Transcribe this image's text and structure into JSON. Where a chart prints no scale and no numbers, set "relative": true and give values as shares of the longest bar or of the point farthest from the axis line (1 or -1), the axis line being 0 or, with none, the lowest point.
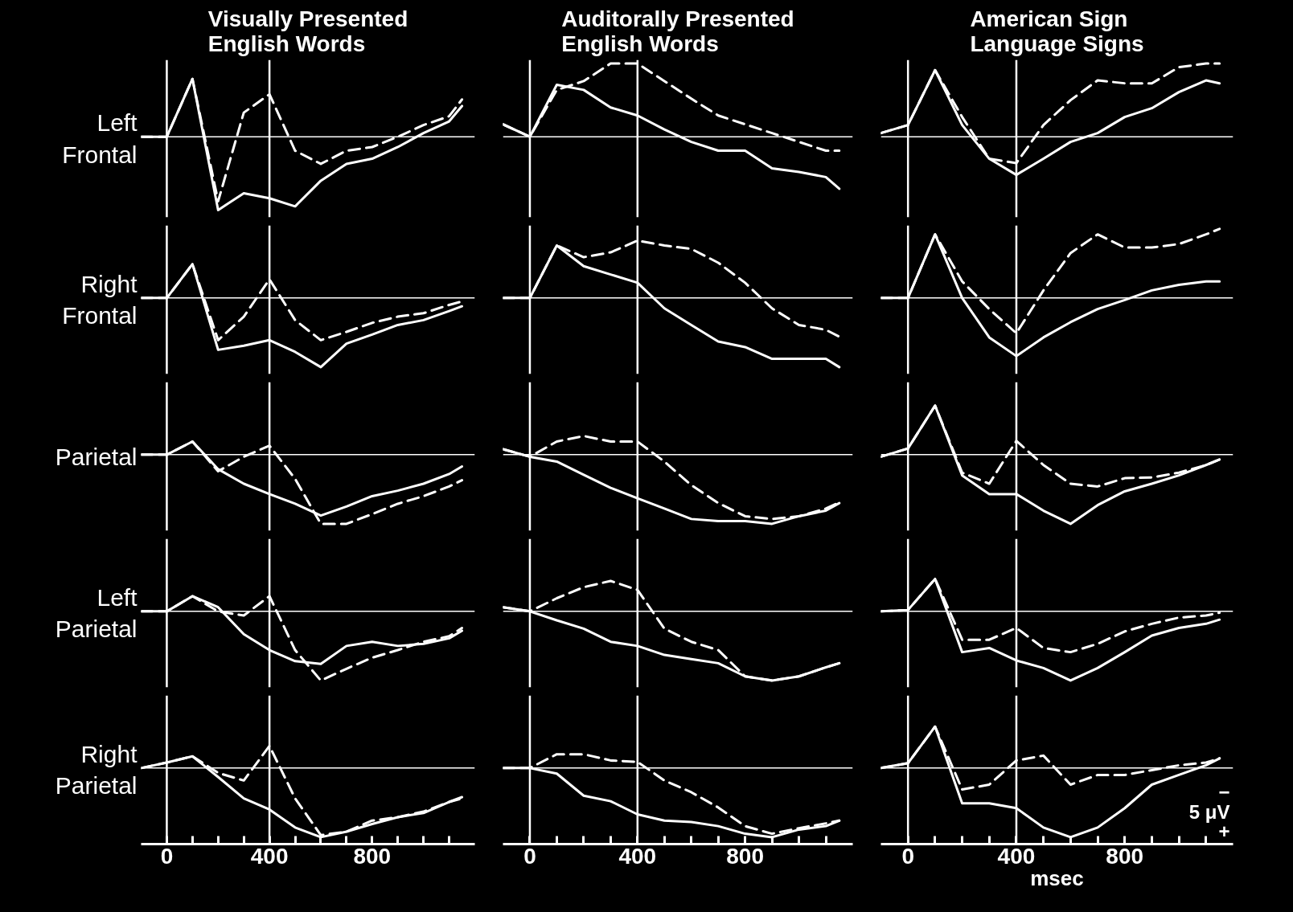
{
  "chart_data": [
    {
      "type": "line",
      "title": "Visually Presented English Words",
      "ylabel": "Left Frontal",
      "relative": true,
      "xlim": [
        -100,
        1200
      ],
      "tick_labels": false,
      "x": [
        -100,
        0,
        100,
        200,
        300,
        400,
        500,
        600,
        700,
        800,
        900,
        1000,
        1100,
        1150
      ],
      "ref_lines": [
        {
          "axis": "x",
          "value": 0,
          "color": "#ffffff"
        },
        {
          "axis": "x",
          "value": 400,
          "color": "#ffffff"
        }
      ],
      "series": [
        {
          "color": "#ffffff",
          "line_style": "solid",
          "values": [
            0,
            0,
            0.79,
            -1,
            -0.77,
            -0.84,
            -0.95,
            -0.6,
            -0.37,
            -0.3,
            -0.14,
            0.05,
            0.21,
            0.42
          ]
        },
        {
          "color": "#ffffff",
          "line_style": "dashed",
          "values": [
            0,
            0,
            0.79,
            -0.88,
            0.33,
            0.58,
            -0.19,
            -0.37,
            -0.19,
            -0.14,
            0,
            0.16,
            0.28,
            0.51
          ]
        }
      ]
    },
    {
      "type": "line",
      "title": "Auditorally Presented English Words",
      "relative": true,
      "xlim": [
        -100,
        1200
      ],
      "tick_labels": false,
      "x": [
        -100,
        0,
        100,
        200,
        300,
        400,
        500,
        600,
        700,
        800,
        900,
        1000,
        1100,
        1150
      ],
      "ref_lines": [
        {
          "axis": "x",
          "value": 0,
          "color": "#ffffff"
        },
        {
          "axis": "x",
          "value": 400,
          "color": "#ffffff"
        }
      ],
      "series": [
        {
          "color": "#ffffff",
          "line_style": "solid",
          "values": [
            0.17,
            0,
            0.71,
            0.64,
            0.4,
            0.29,
            0.1,
            -0.07,
            -0.19,
            -0.19,
            -0.43,
            -0.48,
            -0.55,
            -0.71
          ]
        },
        {
          "color": "#ffffff",
          "line_style": "dashed",
          "values": [
            0.17,
            0,
            0.64,
            0.76,
            1,
            1,
            0.76,
            0.52,
            0.29,
            0.17,
            0.05,
            -0.07,
            -0.19,
            -0.19
          ]
        }
      ]
    },
    {
      "type": "line",
      "title": "American Sign Language Signs",
      "relative": true,
      "xlim": [
        -100,
        1200
      ],
      "tick_labels": false,
      "x": [
        -100,
        0,
        100,
        200,
        300,
        400,
        500,
        600,
        700,
        800,
        900,
        1000,
        1100,
        1150
      ],
      "ref_lines": [
        {
          "axis": "x",
          "value": 0,
          "color": "#ffffff"
        },
        {
          "axis": "x",
          "value": 400,
          "color": "#ffffff"
        }
      ],
      "series": [
        {
          "color": "#ffffff",
          "line_style": "solid",
          "values": [
            0.05,
            0.16,
            0.91,
            0.16,
            -0.3,
            -0.52,
            -0.3,
            -0.07,
            0.05,
            0.27,
            0.39,
            0.61,
            0.77,
            0.73
          ]
        },
        {
          "color": "#ffffff",
          "line_style": "dashed",
          "values": [
            0.05,
            0.16,
            0.91,
            0.27,
            -0.3,
            -0.36,
            0.16,
            0.5,
            0.77,
            0.73,
            0.73,
            0.95,
            1,
            1
          ]
        }
      ]
    },
    {
      "type": "line",
      "ylabel": "Right Frontal",
      "relative": true,
      "xlim": [
        -100,
        1200
      ],
      "tick_labels": false,
      "x": [
        -100,
        0,
        100,
        200,
        300,
        400,
        500,
        600,
        700,
        800,
        900,
        1000,
        1100,
        1150
      ],
      "ref_lines": [
        {
          "axis": "x",
          "value": 0,
          "color": "#ffffff"
        },
        {
          "axis": "x",
          "value": 400,
          "color": "#ffffff"
        }
      ],
      "series": [
        {
          "color": "#ffffff",
          "line_style": "solid",
          "values": [
            0,
            0,
            0.49,
            -0.75,
            -0.69,
            -0.61,
            -0.78,
            -1,
            -0.66,
            -0.53,
            -0.39,
            -0.32,
            -0.19,
            -0.12
          ]
        },
        {
          "color": "#ffffff",
          "line_style": "dashed",
          "values": [
            0,
            0,
            0.49,
            -0.61,
            -0.27,
            0.27,
            -0.32,
            -0.61,
            -0.49,
            -0.36,
            -0.27,
            -0.22,
            -0.1,
            -0.05
          ]
        }
      ]
    },
    {
      "type": "line",
      "relative": true,
      "xlim": [
        -100,
        1200
      ],
      "tick_labels": false,
      "x": [
        -100,
        0,
        100,
        200,
        300,
        400,
        500,
        600,
        700,
        800,
        900,
        1000,
        1100,
        1150
      ],
      "ref_lines": [
        {
          "axis": "x",
          "value": 0,
          "color": "#ffffff"
        },
        {
          "axis": "x",
          "value": 400,
          "color": "#ffffff"
        }
      ],
      "series": [
        {
          "color": "#ffffff",
          "line_style": "solid",
          "values": [
            0,
            0,
            0.76,
            0.46,
            0.34,
            0.22,
            -0.15,
            -0.39,
            -0.63,
            -0.71,
            -0.88,
            -0.88,
            -0.88,
            -1
          ]
        },
        {
          "color": "#ffffff",
          "line_style": "dashed",
          "values": [
            0,
            0,
            0.76,
            0.59,
            0.66,
            0.83,
            0.76,
            0.71,
            0.51,
            0.22,
            -0.15,
            -0.39,
            -0.46,
            -0.56
          ]
        }
      ]
    },
    {
      "type": "line",
      "relative": true,
      "xlim": [
        -100,
        1200
      ],
      "tick_labels": false,
      "x": [
        -100,
        0,
        100,
        200,
        300,
        400,
        500,
        600,
        700,
        800,
        900,
        1000,
        1100,
        1150
      ],
      "ref_lines": [
        {
          "axis": "x",
          "value": 0,
          "color": "#ffffff"
        },
        {
          "axis": "x",
          "value": 400,
          "color": "#ffffff"
        }
      ],
      "series": [
        {
          "color": "#ffffff",
          "line_style": "solid",
          "values": [
            0,
            0,
            0.92,
            0,
            -0.57,
            -0.84,
            -0.57,
            -0.35,
            -0.16,
            -0.03,
            0.11,
            0.19,
            0.24,
            0.24
          ]
        },
        {
          "color": "#ffffff",
          "line_style": "dashed",
          "values": [
            0,
            0,
            0.92,
            0.24,
            -0.16,
            -0.51,
            0.11,
            0.65,
            0.92,
            0.73,
            0.73,
            0.78,
            0.92,
            1
          ]
        }
      ]
    },
    {
      "type": "line",
      "ylabel": "Parietal",
      "relative": true,
      "xlim": [
        -100,
        1200
      ],
      "tick_labels": false,
      "x": [
        -100,
        0,
        100,
        200,
        300,
        400,
        500,
        600,
        700,
        800,
        900,
        1000,
        1100,
        1150
      ],
      "ref_lines": [
        {
          "axis": "x",
          "value": 0,
          "color": "#ffffff"
        },
        {
          "axis": "x",
          "value": 400,
          "color": "#ffffff"
        }
      ],
      "series": [
        {
          "color": "#ffffff",
          "line_style": "solid",
          "values": [
            0,
            0,
            0.19,
            -0.21,
            -0.42,
            -0.57,
            -0.71,
            -0.88,
            -0.75,
            -0.6,
            -0.52,
            -0.42,
            -0.28,
            -0.17
          ]
        },
        {
          "color": "#ffffff",
          "line_style": "dashed",
          "values": [
            0,
            0,
            0.19,
            -0.24,
            -0.03,
            0.13,
            -0.35,
            -1,
            -1,
            -0.86,
            -0.71,
            -0.6,
            -0.46,
            -0.37
          ]
        }
      ]
    },
    {
      "type": "line",
      "relative": true,
      "xlim": [
        -100,
        1200
      ],
      "tick_labels": false,
      "x": [
        -100,
        0,
        100,
        200,
        300,
        400,
        500,
        600,
        700,
        800,
        900,
        1000,
        1100,
        1150
      ],
      "ref_lines": [
        {
          "axis": "x",
          "value": 0,
          "color": "#ffffff"
        },
        {
          "axis": "x",
          "value": 400,
          "color": "#ffffff"
        }
      ],
      "series": [
        {
          "color": "#ffffff",
          "line_style": "solid",
          "values": [
            0.08,
            -0.03,
            -0.1,
            -0.29,
            -0.48,
            -0.63,
            -0.78,
            -0.93,
            -0.96,
            -0.96,
            -1,
            -0.89,
            -0.81,
            -0.7
          ]
        },
        {
          "color": "#ffffff",
          "line_style": "dashed",
          "values": [
            0.08,
            -0.03,
            0.19,
            0.27,
            0.19,
            0.19,
            -0.1,
            -0.44,
            -0.7,
            -0.89,
            -0.93,
            -0.89,
            -0.78,
            -0.69
          ]
        }
      ]
    },
    {
      "type": "line",
      "relative": true,
      "xlim": [
        -100,
        1200
      ],
      "tick_labels": false,
      "x": [
        -100,
        0,
        100,
        200,
        300,
        400,
        500,
        600,
        700,
        800,
        900,
        1000,
        1100,
        1150
      ],
      "ref_lines": [
        {
          "axis": "x",
          "value": 0,
          "color": "#ffffff"
        },
        {
          "axis": "x",
          "value": 400,
          "color": "#ffffff"
        }
      ],
      "series": [
        {
          "color": "#ffffff",
          "line_style": "solid",
          "values": [
            -0.03,
            0.09,
            0.71,
            -0.3,
            -0.57,
            -0.57,
            -0.81,
            -1,
            -0.73,
            -0.53,
            -0.42,
            -0.3,
            -0.15,
            -0.07
          ]
        },
        {
          "color": "#ffffff",
          "line_style": "dashed",
          "values": [
            -0.03,
            0.09,
            0.71,
            -0.26,
            -0.42,
            0.2,
            -0.15,
            -0.42,
            -0.46,
            -0.34,
            -0.33,
            -0.26,
            -0.15,
            -0.07
          ]
        }
      ]
    },
    {
      "type": "line",
      "ylabel": "Left Parietal",
      "relative": true,
      "xlim": [
        -100,
        1200
      ],
      "tick_labels": false,
      "x": [
        -100,
        0,
        100,
        200,
        300,
        400,
        500,
        600,
        700,
        800,
        900,
        1000,
        1100,
        1150
      ],
      "ref_lines": [
        {
          "axis": "x",
          "value": 0,
          "color": "#ffffff"
        },
        {
          "axis": "x",
          "value": 400,
          "color": "#ffffff"
        }
      ],
      "series": [
        {
          "color": "#ffffff",
          "line_style": "solid",
          "values": [
            0,
            0,
            0.22,
            0.06,
            -0.33,
            -0.56,
            -0.72,
            -0.76,
            -0.5,
            -0.44,
            -0.5,
            -0.47,
            -0.39,
            -0.28
          ]
        },
        {
          "color": "#ffffff",
          "line_style": "dashed",
          "values": [
            0,
            0,
            0.22,
            0,
            -0.06,
            0.22,
            -0.56,
            -1,
            -0.83,
            -0.67,
            -0.56,
            -0.44,
            -0.36,
            -0.24
          ]
        }
      ]
    },
    {
      "type": "line",
      "relative": true,
      "xlim": [
        -100,
        1200
      ],
      "tick_labels": false,
      "x": [
        -100,
        0,
        100,
        200,
        300,
        400,
        500,
        600,
        700,
        800,
        900,
        1000,
        1100,
        1150
      ],
      "ref_lines": [
        {
          "axis": "x",
          "value": 0,
          "color": "#ffffff"
        },
        {
          "axis": "x",
          "value": 400,
          "color": "#ffffff"
        }
      ],
      "series": [
        {
          "color": "#ffffff",
          "line_style": "solid",
          "values": [
            0.06,
            0,
            -0.13,
            -0.25,
            -0.44,
            -0.5,
            -0.63,
            -0.69,
            -0.75,
            -0.94,
            -1,
            -0.94,
            -0.81,
            -0.75
          ]
        },
        {
          "color": "#ffffff",
          "line_style": "dashed",
          "values": [
            0.06,
            0,
            0.19,
            0.35,
            0.44,
            0.31,
            -0.25,
            -0.44,
            -0.56,
            -0.94,
            -1,
            -0.94,
            -0.81,
            -0.75
          ]
        }
      ]
    },
    {
      "type": "line",
      "relative": true,
      "xlim": [
        -100,
        1200
      ],
      "tick_labels": false,
      "x": [
        -100,
        0,
        100,
        200,
        300,
        400,
        500,
        600,
        700,
        800,
        900,
        1000,
        1100,
        1150
      ],
      "ref_lines": [
        {
          "axis": "x",
          "value": 0,
          "color": "#ffffff"
        },
        {
          "axis": "x",
          "value": 400,
          "color": "#ffffff"
        }
      ],
      "series": [
        {
          "color": "#ffffff",
          "line_style": "solid",
          "values": [
            0,
            0.02,
            0.47,
            -0.59,
            -0.53,
            -0.71,
            -0.82,
            -1,
            -0.82,
            -0.59,
            -0.35,
            -0.24,
            -0.18,
            -0.12
          ]
        },
        {
          "color": "#ffffff",
          "line_style": "dashed",
          "values": [
            0,
            0.02,
            0.47,
            -0.41,
            -0.41,
            -0.24,
            -0.53,
            -0.59,
            -0.47,
            -0.29,
            -0.18,
            -0.09,
            -0.06,
            -0.02
          ]
        }
      ]
    },
    {
      "type": "line",
      "ylabel": "Right Parietal",
      "relative": true,
      "xlim": [
        -100,
        1200
      ],
      "tick_labels": "x",
      "xticks": [
        0,
        {
          "value": 100,
          "label": null
        },
        {
          "value": 200,
          "label": null
        },
        {
          "value": 300,
          "label": null
        },
        400,
        {
          "value": 500,
          "label": null
        },
        {
          "value": 600,
          "label": null
        },
        {
          "value": 700,
          "label": null
        },
        800,
        {
          "value": 900,
          "label": null
        },
        {
          "value": 1000,
          "label": null
        },
        {
          "value": 1100,
          "label": null
        }
      ],
      "x": [
        -100,
        0,
        100,
        200,
        300,
        400,
        500,
        600,
        700,
        800,
        900,
        1000,
        1100,
        1150
      ],
      "ref_lines": [
        {
          "axis": "x",
          "value": 0,
          "color": "#ffffff"
        },
        {
          "axis": "x",
          "value": 400,
          "color": "#ffffff"
        }
      ],
      "series": [
        {
          "color": "#ffffff",
          "line_style": "solid",
          "values": [
            0,
            0.08,
            0.17,
            -0.13,
            -0.44,
            -0.6,
            -0.86,
            -1,
            -0.92,
            -0.81,
            -0.71,
            -0.65,
            -0.49,
            -0.42
          ]
        },
        {
          "color": "#ffffff",
          "line_style": "dashed",
          "values": [
            0,
            0.08,
            0.17,
            -0.07,
            -0.18,
            0.32,
            -0.44,
            -0.97,
            -0.92,
            -0.76,
            -0.71,
            -0.63,
            -0.49,
            -0.44
          ]
        }
      ]
    },
    {
      "type": "line",
      "relative": true,
      "xlim": [
        -100,
        1200
      ],
      "tick_labels": "x",
      "xticks": [
        0,
        {
          "value": 100,
          "label": null
        },
        {
          "value": 200,
          "label": null
        },
        {
          "value": 300,
          "label": null
        },
        400,
        {
          "value": 500,
          "label": null
        },
        {
          "value": 600,
          "label": null
        },
        {
          "value": 700,
          "label": null
        },
        800,
        {
          "value": 900,
          "label": null
        },
        {
          "value": 1000,
          "label": null
        },
        {
          "value": 1100,
          "label": null
        }
      ],
      "x": [
        -100,
        0,
        100,
        200,
        300,
        400,
        500,
        600,
        700,
        800,
        900,
        1000,
        1100,
        1150
      ],
      "ref_lines": [
        {
          "axis": "x",
          "value": 0,
          "color": "#ffffff"
        },
        {
          "axis": "x",
          "value": 400,
          "color": "#ffffff"
        }
      ],
      "series": [
        {
          "color": "#ffffff",
          "line_style": "solid",
          "values": [
            0,
            0,
            -0.08,
            -0.4,
            -0.48,
            -0.67,
            -0.76,
            -0.78,
            -0.84,
            -0.95,
            -1,
            -0.89,
            -0.84,
            -0.76
          ]
        },
        {
          "color": "#ffffff",
          "line_style": "dashed",
          "values": [
            0,
            0,
            0.2,
            0.2,
            0.11,
            0.09,
            -0.18,
            -0.35,
            -0.57,
            -0.84,
            -0.95,
            -0.87,
            -0.8,
            -0.76
          ]
        }
      ]
    },
    {
      "type": "line",
      "xlabel": "msec",
      "annotations": [
        "−",
        "5 μV",
        "+"
      ],
      "relative": true,
      "xlim": [
        -100,
        1200
      ],
      "tick_labels": "x",
      "xticks": [
        0,
        {
          "value": 100,
          "label": null
        },
        {
          "value": 200,
          "label": null
        },
        {
          "value": 300,
          "label": null
        },
        400,
        {
          "value": 500,
          "label": null
        },
        {
          "value": 600,
          "label": null
        },
        {
          "value": 700,
          "label": null
        },
        800,
        {
          "value": 900,
          "label": null
        },
        {
          "value": 1000,
          "label": null
        },
        {
          "value": 1100,
          "label": null
        }
      ],
      "x": [
        -100,
        0,
        100,
        200,
        300,
        400,
        500,
        600,
        700,
        800,
        900,
        1000,
        1100,
        1150
      ],
      "ref_lines": [
        {
          "axis": "x",
          "value": 0,
          "color": "#ffffff"
        },
        {
          "axis": "x",
          "value": 400,
          "color": "#ffffff"
        }
      ],
      "series": [
        {
          "color": "#ffffff",
          "line_style": "solid",
          "values": [
            0,
            0.07,
            0.6,
            -0.51,
            -0.51,
            -0.58,
            -0.86,
            -1,
            -0.86,
            -0.58,
            -0.24,
            -0.1,
            0.04,
            0.14
          ]
        },
        {
          "color": "#ffffff",
          "line_style": "dashed",
          "values": [
            0,
            0.07,
            0.6,
            -0.31,
            -0.24,
            0.11,
            0.18,
            -0.24,
            -0.1,
            -0.1,
            -0.03,
            0.04,
            0.08,
            0.14
          ]
        }
      ]
    }
  ]
}
